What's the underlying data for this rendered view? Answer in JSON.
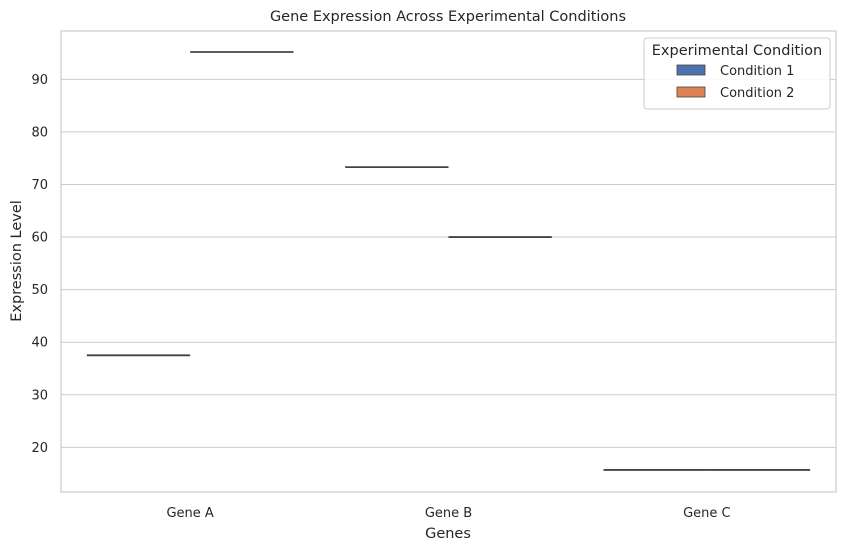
{
  "chart_data": {
    "type": "box",
    "title": "Gene Expression Across Experimental Conditions",
    "xlabel": "Genes",
    "ylabel": "Expression Level",
    "categories": [
      "Gene A",
      "Gene B",
      "Gene C"
    ],
    "ylim": [
      11.5,
      99.2
    ],
    "yticks": [
      20,
      30,
      40,
      50,
      60,
      70,
      80,
      90
    ],
    "grid": true,
    "legend": {
      "title": "Experimental Condition",
      "placement": "top-right"
    },
    "series": [
      {
        "name": "Condition 1",
        "color": "#4c72b0",
        "values": [
          37.5,
          73.3,
          15.7
        ]
      },
      {
        "name": "Condition 2",
        "color": "#dd8452",
        "values": [
          95.2,
          60.0,
          15.7
        ]
      }
    ]
  }
}
